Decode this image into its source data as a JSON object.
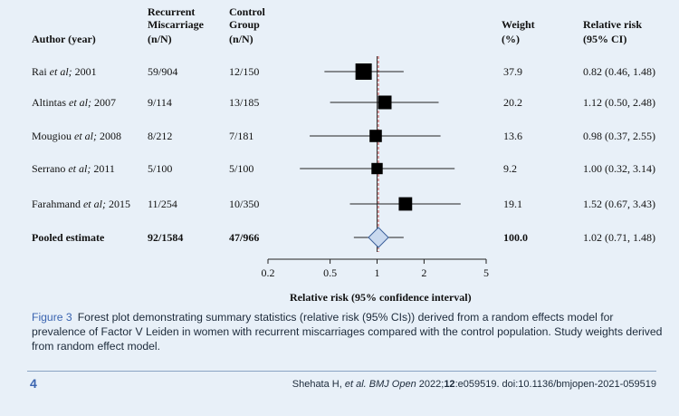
{
  "headers": {
    "author": "Author (year)",
    "case_line1": "Recurrent",
    "case_line2": "Miscarriage",
    "case_line3": "(n/N)",
    "control_line1": "Control",
    "control_line2": "Group",
    "control_line3": "(n/N)",
    "weight_line1": "Weight",
    "weight_line2": "(%)",
    "rr_line1": "Relative risk",
    "rr_line2": "(95% CI)"
  },
  "chart_data": {
    "type": "forest",
    "xlabel": "Relative risk (95% confidence interval)",
    "xscale": "log",
    "xlim": [
      0.2,
      5
    ],
    "ticks": [
      0.2,
      0.5,
      1,
      2,
      5
    ],
    "tick_labels": [
      "0.2",
      "0.5",
      "1",
      "2",
      "5"
    ],
    "reference_line": 1,
    "pooled_line": 1.02,
    "studies": [
      {
        "author": "Rai",
        "suffix": " et al;",
        "year": " 2001",
        "cases": "59/904",
        "controls": "12/150",
        "weight": "37.9",
        "rr_text": "0.82 (0.46, 1.48)",
        "rr": 0.82,
        "lo": 0.46,
        "hi": 1.48,
        "weight_value": 37.9
      },
      {
        "author": "Altintas",
        "suffix": " et al;",
        "year": " 2007",
        "cases": "9/114",
        "controls": "13/185",
        "weight": "20.2",
        "rr_text": "1.12 (0.50, 2.48)",
        "rr": 1.12,
        "lo": 0.5,
        "hi": 2.48,
        "weight_value": 20.2
      },
      {
        "author": "Mougiou",
        "suffix": " et al;",
        "year": " 2008",
        "cases": "8/212",
        "controls": "7/181",
        "weight": "13.6",
        "rr_text": "0.98 (0.37, 2.55)",
        "rr": 0.98,
        "lo": 0.37,
        "hi": 2.55,
        "weight_value": 13.6
      },
      {
        "author": "Serrano",
        "suffix": " et al;",
        "year": " 2011",
        "cases": "5/100",
        "controls": "5/100",
        "weight": "9.2",
        "rr_text": "1.00 (0.32, 3.14)",
        "rr": 1.0,
        "lo": 0.32,
        "hi": 3.14,
        "weight_value": 9.2
      },
      {
        "author": "Farahmand",
        "suffix": " et al;",
        "year": " 2015",
        "cases": "11/254",
        "controls": "10/350",
        "weight": "19.1",
        "rr_text": "1.52 (0.67, 3.43)",
        "rr": 1.52,
        "lo": 0.67,
        "hi": 3.43,
        "weight_value": 19.1
      }
    ],
    "pooled": {
      "label": "Pooled estimate",
      "cases": "92/1584",
      "controls": "47/966",
      "weight": "100.0",
      "rr_text": "1.02 (0.71, 1.48)",
      "rr": 1.02,
      "lo": 0.71,
      "hi": 1.48
    }
  },
  "caption": {
    "figure_label": "Figure 3",
    "text": "Forest plot demonstrating summary statistics (relative risk (95% CIs)) derived from a random effects model for prevalence of Factor V Leiden in women with recurrent miscarriages compared with the control population. Study weights derived from random effect model."
  },
  "footer": {
    "page_number": "4",
    "citation_authors": "Shehata H, ",
    "citation_journal": "et al. BMJ Open",
    "citation_year": " 2022;",
    "citation_volume": "12",
    "citation_rest": ":e059519. doi:10.1136/bmjopen-2021-059519"
  },
  "colors": {
    "diamond_fill": "#c9d9ef",
    "diamond_stroke": "#3a5f9a",
    "accent": "#3a64b0"
  }
}
